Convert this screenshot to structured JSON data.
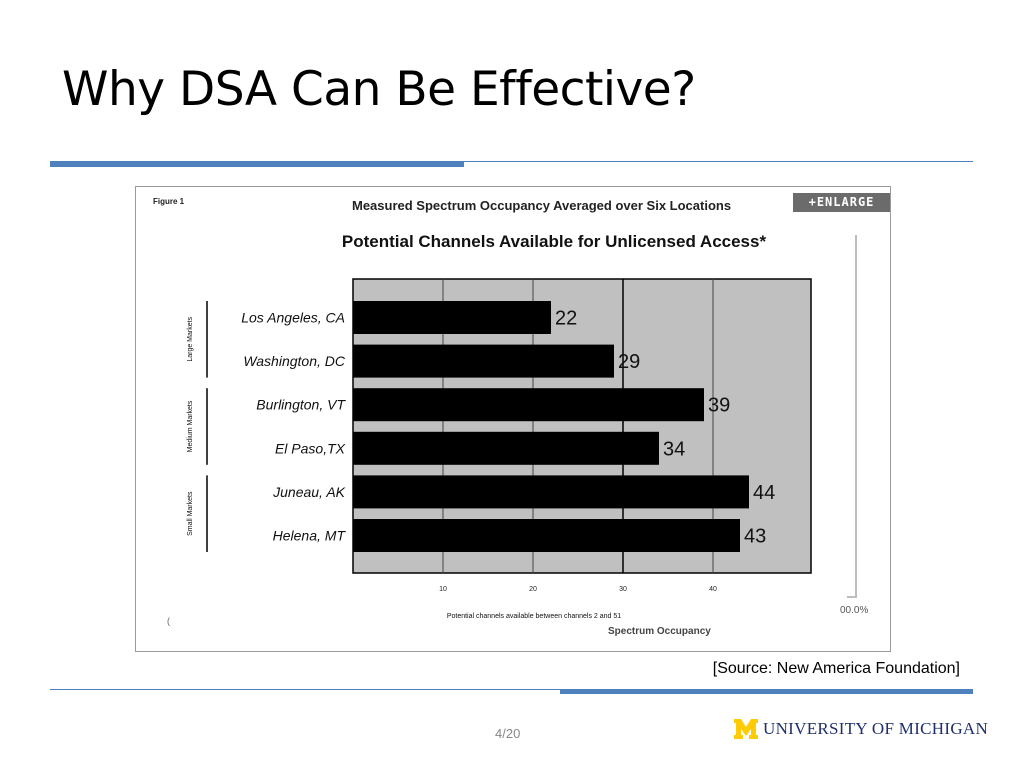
{
  "slide": {
    "title": "Why DSA Can Be Effective?"
  },
  "figure": {
    "label": "Figure 1",
    "heading": "Measured Spectrum Occupancy Averaged over Six Locations",
    "enlarge_label": "+ENLARGE",
    "gauge_readout": "00.0%",
    "underlay_caption": "Spectrum Occupancy",
    "stray_mark": "("
  },
  "chart_data": {
    "type": "bar",
    "orientation": "horizontal",
    "title": "Potential Channels Available for Unlicensed Access*",
    "xlabel": "Potential channels available between channels 2 and 51",
    "ylabel": "",
    "categories": [
      "Los Angeles, CA",
      "Washington, DC",
      "Burlington, VT",
      "El Paso,TX",
      "Juneau, AK",
      "Helena, MT"
    ],
    "values": [
      22,
      29,
      39,
      34,
      44,
      43
    ],
    "groups": [
      {
        "name": "Large Markets",
        "categories": [
          "Los Angeles, CA",
          "Washington, DC"
        ]
      },
      {
        "name": "Medium Markets",
        "categories": [
          "Burlington, VT",
          "El Paso,TX"
        ]
      },
      {
        "name": "Small Markets",
        "categories": [
          "Juneau, AK",
          "Helena, MT"
        ]
      }
    ],
    "xticks": [
      10,
      20,
      30,
      40
    ],
    "xlim": [
      0,
      51
    ],
    "grid": true,
    "bar_color": "#000000",
    "plot_background": "#c0c0c0"
  },
  "footer": {
    "source": "[Source: New America Foundation]",
    "page": "4/20",
    "logo_text": "UNIVERSITY OF MICHIGAN"
  },
  "colors": {
    "accent": "#4f81bd",
    "logo_maize": "#ffcb05",
    "logo_blue": "#1f2f6b"
  }
}
